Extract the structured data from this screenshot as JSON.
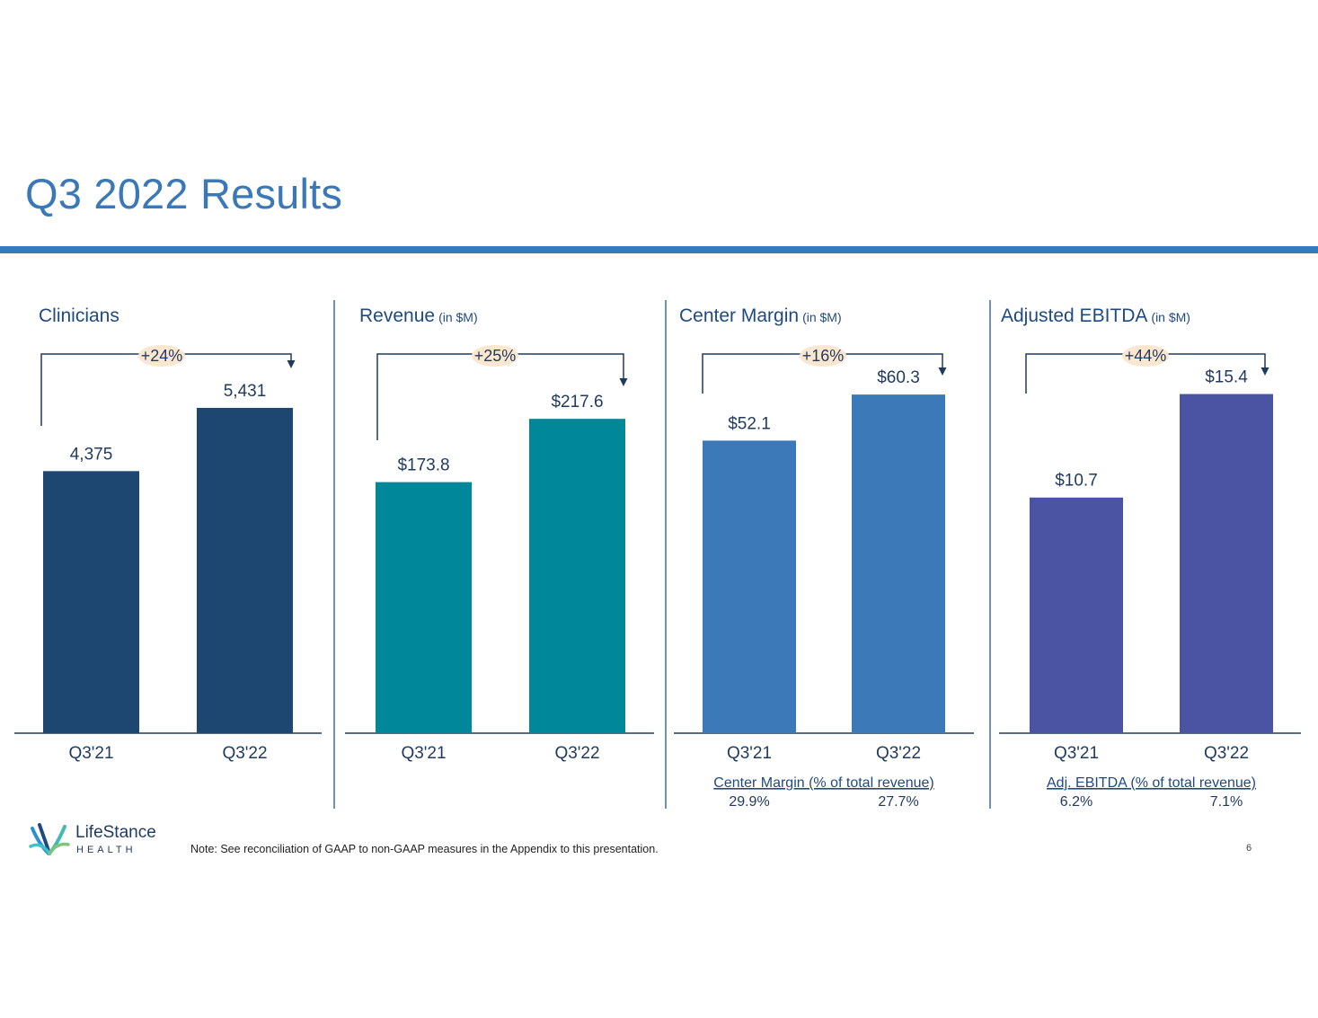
{
  "page": {
    "title": "Q3 2022 Results",
    "note": "Note:  See reconciliation of GAAP to non-GAAP measures in the Appendix to this presentation.",
    "page_number": "6",
    "logo": {
      "name": "LifeStance",
      "sub": "HEALTH"
    }
  },
  "panels": [
    {
      "title": "Clinicians",
      "unit": ""
    },
    {
      "title": "Revenue",
      "unit": "(in $M)"
    },
    {
      "title": "Center Margin",
      "unit": "(in $M)"
    },
    {
      "title": "Adjusted EBITDA",
      "unit": "(in $M)"
    }
  ],
  "colors": {
    "clinicians": "#1d4670",
    "revenue": "#00879a",
    "center_margin": "#3c79b8",
    "ebitda": "#4a54a3",
    "title": "#3a78b8",
    "axis": "#1f3a5f",
    "growth_bubble": "#fbe6cf"
  },
  "chart_data": [
    {
      "type": "bar",
      "title": "Clinicians",
      "categories": [
        "Q3'21",
        "Q3'22"
      ],
      "values": [
        4375,
        5431
      ],
      "value_labels": [
        "4,375",
        "5,431"
      ],
      "growth_label": "+24%",
      "ylim": [
        0,
        7500
      ]
    },
    {
      "type": "bar",
      "title": "Revenue (in $M)",
      "categories": [
        "Q3'21",
        "Q3'22"
      ],
      "values": [
        173.8,
        217.6
      ],
      "value_labels": [
        "$173.8",
        "$217.6"
      ],
      "growth_label": "+25%",
      "ylim": [
        0,
        311
      ]
    },
    {
      "type": "bar",
      "title": "Center Margin (in $M)",
      "categories": [
        "Q3'21",
        "Q3'22"
      ],
      "values": [
        52.1,
        60.3
      ],
      "value_labels": [
        "$52.1",
        "$60.3"
      ],
      "growth_label": "+16%",
      "ylim": [
        0,
        80
      ],
      "footnote": {
        "label": "Center Margin (% of total revenue)",
        "values": [
          "29.9%",
          "27.7%"
        ]
      }
    },
    {
      "type": "bar",
      "title": "Adjusted EBITDA (in $M)",
      "categories": [
        "Q3'21",
        "Q3'22"
      ],
      "values": [
        10.7,
        15.4
      ],
      "value_labels": [
        "$10.7",
        "$15.4"
      ],
      "growth_label": "+44%",
      "ylim": [
        0,
        20.4
      ],
      "footnote": {
        "label": "Adj. EBITDA (% of total revenue)",
        "values": [
          "6.2%",
          "7.1%"
        ]
      }
    }
  ]
}
